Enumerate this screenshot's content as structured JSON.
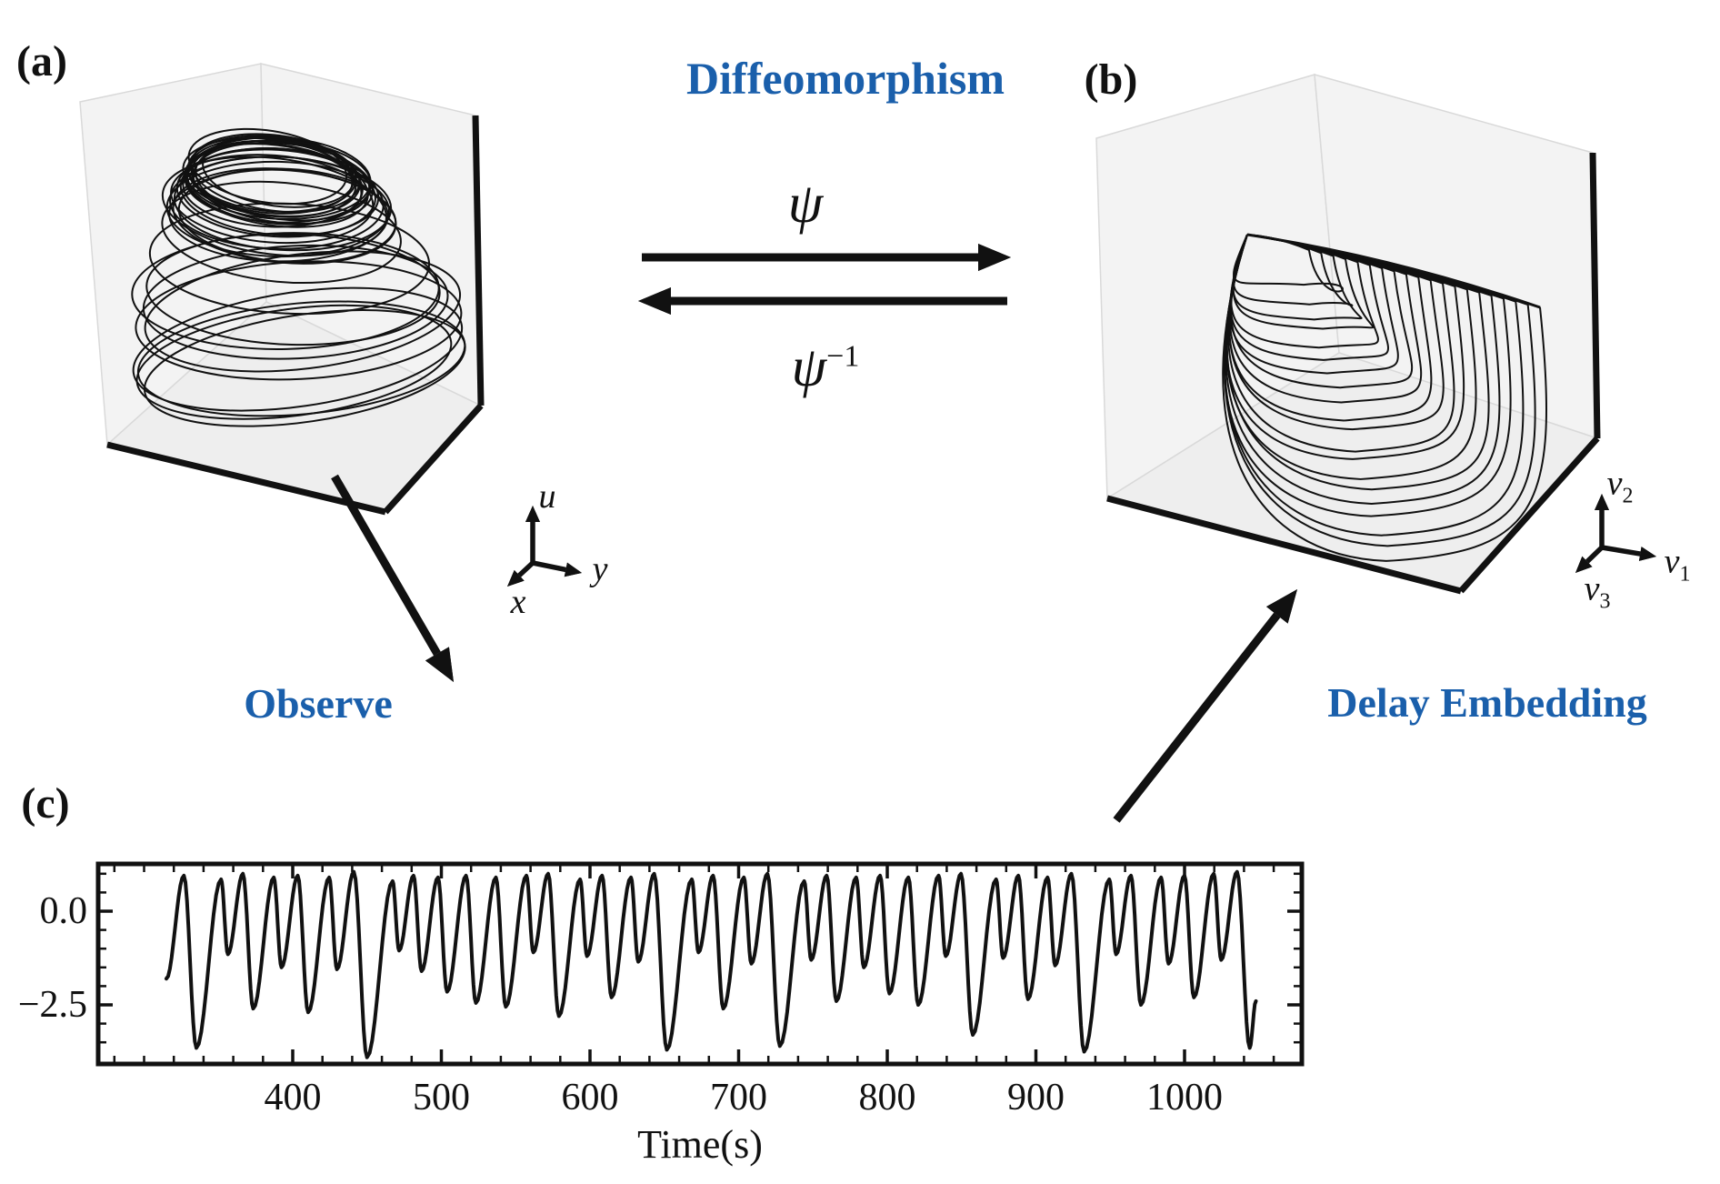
{
  "figure": {
    "panels": {
      "a": "(a)",
      "b": "(b)",
      "c": "(c)"
    },
    "diffeomorphism_title": "Diffeomorphism",
    "psi": "ψ",
    "psi_inverse_base": "ψ",
    "psi_inverse_sup": "−1",
    "observe_label": "Observe",
    "delay_embedding_label": "Delay Embedding"
  },
  "panel_a": {
    "axes": {
      "u": "u",
      "x": "x",
      "y": "y"
    },
    "plot": {
      "type": "3d-attractor-dome",
      "loops": 35
    }
  },
  "panel_b": {
    "axes": {
      "v1_base": "v",
      "v1_sub": "1",
      "v2_base": "v",
      "v2_sub": "2",
      "v3_base": "v",
      "v3_sub": "3"
    },
    "plot": {
      "type": "3d-attractor-funnel",
      "loops": 20
    }
  },
  "chart_data": {
    "type": "line",
    "title": "",
    "xlabel": "Time(s)",
    "ylabel": "",
    "xlim": [
      269,
      1079
    ],
    "ylim": [
      -4.08,
      1.26
    ],
    "xticks": [
      400,
      500,
      600,
      700,
      800,
      900,
      1000
    ],
    "xtick_labels": [
      "400",
      "500",
      "600",
      "700",
      "800",
      "900",
      "1000"
    ],
    "yticks": [
      0.0,
      -2.5
    ],
    "ytick_labels": [
      "0.0",
      "−2.5"
    ],
    "x_minor_step": 20,
    "y_minor_step": 0.5,
    "grid": false,
    "legend": "none",
    "t_start": 315,
    "t_end": 1048,
    "v_start": -1.8,
    "v_end": -2.4,
    "spikes": {
      "peaks": [
        0.95,
        0.85,
        1.0,
        0.9,
        0.95,
        0.9,
        1.05,
        0.8,
        0.95,
        0.9,
        0.95,
        0.9,
        0.95,
        1.0,
        0.85,
        0.95,
        0.9,
        1.0,
        0.85,
        0.95,
        0.9,
        1.0,
        0.8,
        0.95,
        0.9,
        0.95,
        0.9,
        0.95,
        1.0,
        0.85,
        0.95,
        0.9,
        1.0,
        0.85,
        0.95,
        0.9,
        0.95,
        1.0,
        1.05
      ],
      "minima": [
        -3.65,
        -1.15,
        -2.6,
        -1.5,
        -2.7,
        -1.55,
        -3.9,
        -1.05,
        -1.6,
        -2.15,
        -2.45,
        -2.55,
        -1.1,
        -2.8,
        -1.2,
        -2.3,
        -1.35,
        -3.7,
        -1.1,
        -2.6,
        -1.4,
        -3.6,
        -1.3,
        -2.4,
        -1.5,
        -2.2,
        -2.5,
        -1.2,
        -3.3,
        -1.25,
        -2.35,
        -1.45,
        -3.75,
        -1.15,
        -2.5,
        -1.4,
        -2.3,
        -1.3,
        -3.65
      ]
    }
  },
  "colors": {
    "accent_blue": "#1a5fab",
    "ink": "#111111",
    "pane_fill_wall": "#f3f3f3",
    "pane_fill_floor": "#eeeeee",
    "pane_edge": "#d9d9d9"
  }
}
